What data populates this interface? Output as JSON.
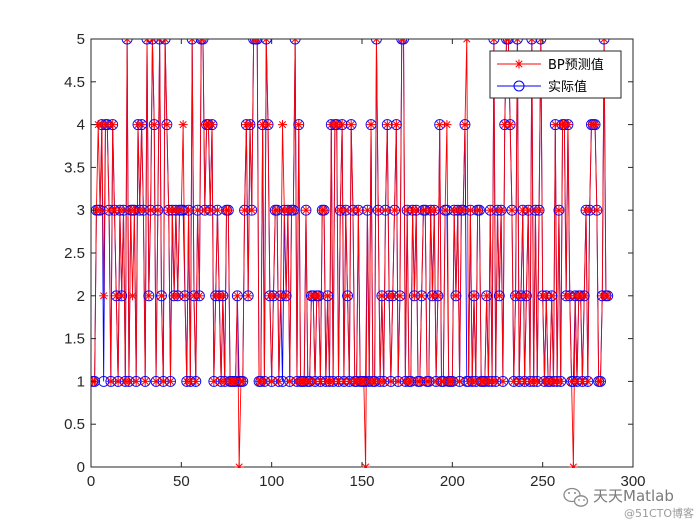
{
  "chart_data": {
    "type": "line",
    "title": "",
    "xlabel": "",
    "ylabel": "",
    "xlim": [
      0,
      300
    ],
    "ylim": [
      0,
      5
    ],
    "x_ticks": [
      0,
      50,
      100,
      150,
      200,
      250,
      300
    ],
    "y_ticks": [
      0,
      0.5,
      1,
      1.5,
      2,
      2.5,
      3,
      3.5,
      4,
      4.5,
      5
    ],
    "x_tick_labels": [
      "0",
      "50",
      "100",
      "150",
      "200",
      "250",
      "300"
    ],
    "y_tick_labels": [
      "0",
      "0.5",
      "1",
      "1.5",
      "2",
      "2.5",
      "3",
      "3.5",
      "4",
      "4.5",
      "5"
    ],
    "grid": false,
    "legend_position": "top-right",
    "colors": {
      "predicted": "#ff0000",
      "actual": "#0000ff"
    },
    "series": [
      {
        "name": "BP预测值",
        "marker": "asterisk",
        "values": [
          1,
          1,
          3,
          4,
          3,
          4,
          2,
          4,
          4,
          3,
          1,
          4,
          3,
          2,
          1,
          3,
          2,
          3,
          1,
          5,
          1,
          3,
          2,
          3,
          1,
          4,
          3,
          4,
          3,
          1,
          5,
          2,
          3,
          5,
          4,
          1,
          3,
          5,
          2,
          1,
          5,
          4,
          3,
          1,
          3,
          2,
          3,
          2,
          3,
          3,
          4,
          2,
          1,
          3,
          1,
          5,
          2,
          1,
          3,
          2,
          5,
          5,
          3,
          4,
          4,
          3,
          4,
          1,
          2,
          3,
          2,
          1,
          2,
          1,
          3,
          3,
          1,
          1,
          1,
          1,
          2,
          0,
          1,
          1,
          3,
          4,
          2,
          4,
          3,
          5,
          5,
          5,
          1,
          1,
          4,
          1,
          5,
          4,
          2,
          1,
          2,
          3,
          3,
          1,
          2,
          4,
          3,
          2,
          3,
          1,
          3,
          3,
          5,
          1,
          4,
          1,
          1,
          1,
          3,
          1,
          1,
          2,
          2,
          1,
          2,
          2,
          1,
          3,
          3,
          1,
          2,
          1,
          4,
          1,
          4,
          4,
          1,
          3,
          4,
          1,
          3,
          2,
          1,
          4,
          3,
          1,
          1,
          3,
          1,
          1,
          1,
          0,
          3,
          1,
          4,
          1,
          1,
          5,
          3,
          1,
          2,
          1,
          3,
          4,
          2,
          1,
          2,
          3,
          4,
          1,
          2,
          5,
          5,
          1,
          3,
          1,
          1,
          3,
          2,
          3,
          1,
          1,
          2,
          3,
          3,
          1,
          1,
          3,
          2,
          3,
          1,
          2,
          4,
          1,
          1,
          3,
          4,
          1,
          1,
          1,
          3,
          2,
          3,
          1,
          3,
          3,
          4,
          5,
          1,
          3,
          1,
          2,
          1,
          3,
          3,
          1,
          1,
          1,
          2,
          1,
          3,
          1,
          5,
          1,
          3,
          2,
          3,
          1,
          4,
          5,
          5,
          4,
          3,
          1,
          2,
          5,
          1,
          2,
          3,
          1,
          2,
          3,
          1,
          5,
          1,
          3,
          1,
          3,
          5,
          2,
          1,
          2,
          1,
          1,
          2,
          1,
          4,
          1,
          3,
          1,
          4,
          4,
          2,
          4,
          2,
          1,
          0,
          2,
          1,
          2,
          2,
          1,
          2,
          3,
          1,
          3,
          4,
          4,
          4,
          3,
          1,
          1,
          2,
          5,
          2,
          2
        ],
        "x_start": 1
      },
      {
        "name": "实际值",
        "marker": "circle",
        "values": [
          1,
          1,
          3,
          3,
          3,
          4,
          1,
          4,
          4,
          3,
          1,
          4,
          3,
          2,
          1,
          3,
          2,
          3,
          1,
          5,
          1,
          3,
          3,
          3,
          1,
          4,
          3,
          4,
          3,
          1,
          5,
          2,
          3,
          5,
          4,
          1,
          3,
          5,
          2,
          1,
          5,
          4,
          3,
          1,
          3,
          2,
          3,
          2,
          3,
          3,
          3,
          2,
          1,
          3,
          1,
          5,
          2,
          1,
          3,
          2,
          5,
          5,
          3,
          4,
          4,
          3,
          4,
          1,
          2,
          3,
          2,
          1,
          2,
          1,
          3,
          3,
          1,
          1,
          1,
          1,
          2,
          1,
          1,
          1,
          3,
          4,
          2,
          4,
          3,
          5,
          5,
          5,
          1,
          1,
          4,
          1,
          5,
          4,
          2,
          1,
          2,
          3,
          3,
          1,
          2,
          1,
          3,
          2,
          3,
          1,
          3,
          3,
          5,
          1,
          4,
          1,
          1,
          1,
          3,
          1,
          1,
          2,
          2,
          1,
          2,
          2,
          1,
          3,
          3,
          1,
          2,
          1,
          4,
          1,
          4,
          4,
          1,
          3,
          4,
          1,
          3,
          2,
          1,
          4,
          3,
          1,
          1,
          3,
          1,
          1,
          1,
          1,
          3,
          1,
          4,
          1,
          1,
          5,
          3,
          1,
          2,
          1,
          3,
          4,
          2,
          1,
          2,
          3,
          4,
          1,
          2,
          5,
          5,
          1,
          3,
          1,
          1,
          3,
          2,
          3,
          1,
          1,
          2,
          3,
          3,
          1,
          1,
          3,
          2,
          3,
          1,
          2,
          4,
          1,
          1,
          3,
          3,
          1,
          1,
          1,
          3,
          2,
          3,
          1,
          3,
          3,
          4,
          1,
          1,
          3,
          1,
          2,
          1,
          3,
          3,
          1,
          1,
          1,
          2,
          1,
          3,
          1,
          5,
          1,
          3,
          2,
          3,
          1,
          4,
          5,
          5,
          4,
          3,
          1,
          2,
          5,
          1,
          2,
          3,
          1,
          2,
          3,
          1,
          5,
          1,
          3,
          1,
          3,
          5,
          2,
          1,
          2,
          1,
          1,
          2,
          1,
          4,
          1,
          3,
          1,
          4,
          4,
          2,
          4,
          2,
          1,
          1,
          2,
          1,
          2,
          2,
          1,
          2,
          3,
          1,
          3,
          4,
          4,
          4,
          3,
          1,
          1,
          2,
          5,
          2,
          2
        ],
        "x_start": 1
      }
    ]
  },
  "watermark": {
    "main": "天天Matlab",
    "sub": "@51CTO博客"
  }
}
